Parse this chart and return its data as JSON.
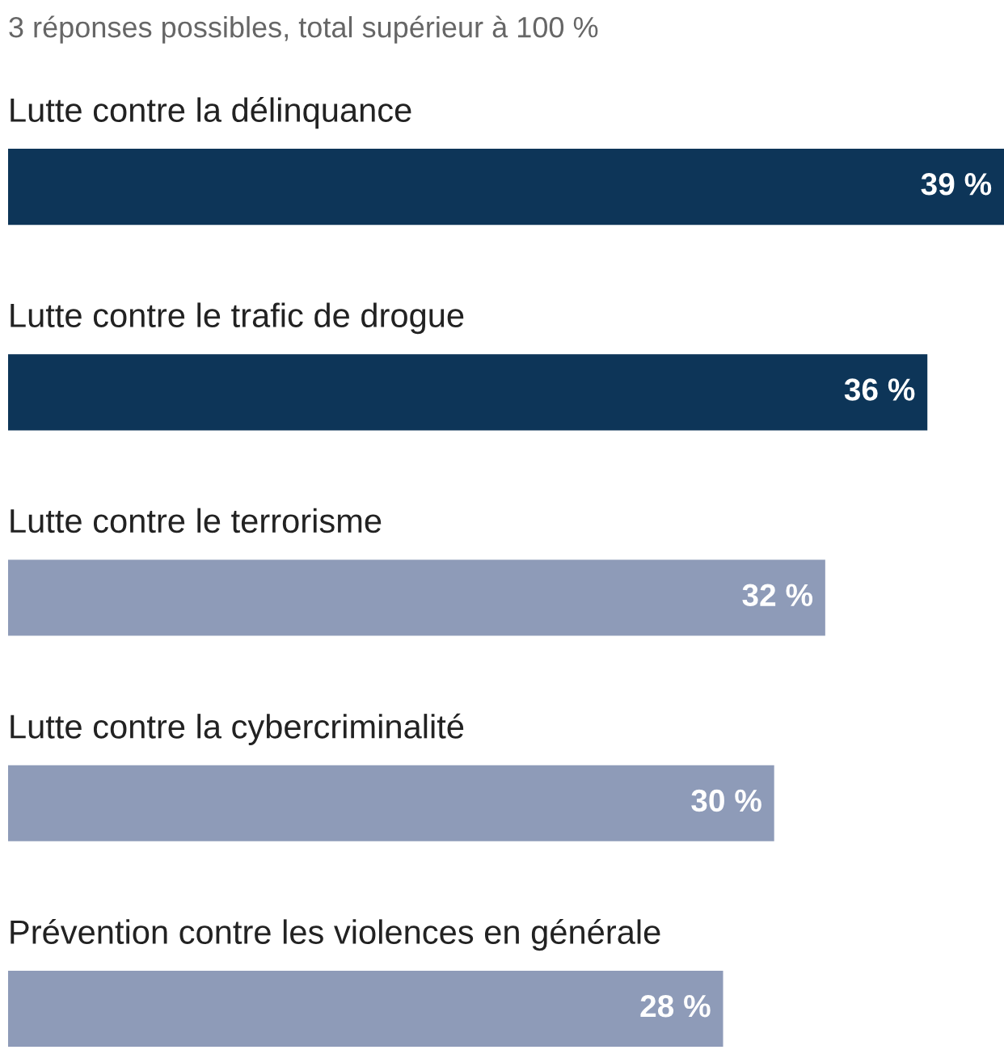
{
  "chart_data": {
    "type": "bar",
    "orientation": "horizontal",
    "subtitle": "3 réponses possibles, total supérieur à 100 %",
    "categories": [
      "Lutte contre la délinquance",
      "Lutte contre le trafic de drogue",
      "Lutte contre le terrorisme",
      "Lutte contre la cybercriminalité",
      "Prévention contre les violences en générale"
    ],
    "values": [
      39,
      36,
      32,
      30,
      28
    ],
    "colors": [
      "#0d3558",
      "#0d3558",
      "#8e9bb8",
      "#8e9bb8",
      "#8e9bb8"
    ],
    "value_labels": [
      "39 %",
      "36 %",
      "32 %",
      "30 %",
      "28 %"
    ]
  }
}
